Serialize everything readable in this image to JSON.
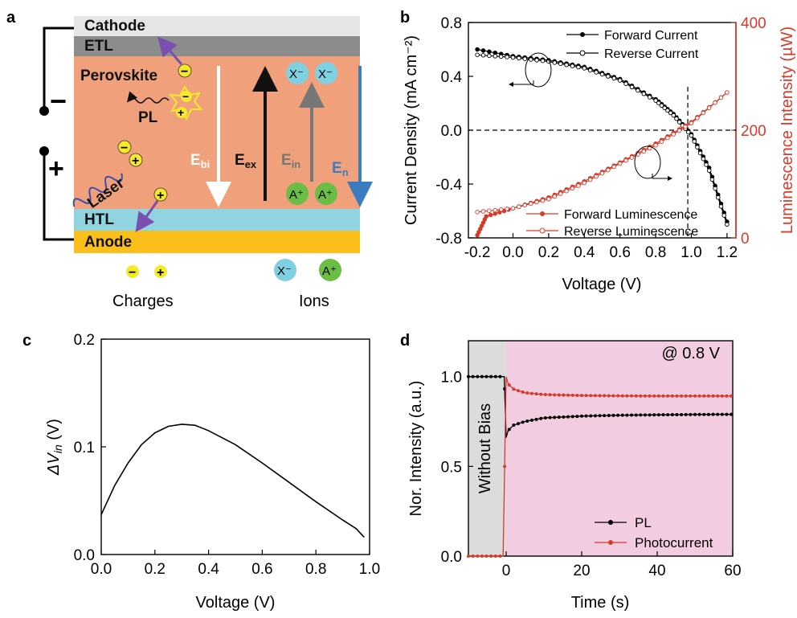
{
  "panels": {
    "a": "a",
    "b": "b",
    "c": "c",
    "d": "d"
  },
  "device": {
    "layers": {
      "cathode": "Cathode",
      "etl": "ETL",
      "perovskite": "Perovskite",
      "htl": "HTL",
      "anode": "Anode"
    },
    "pl": "PL",
    "laser": "Laser",
    "fields": {
      "ebi": "E",
      "ebi_sub": "bi",
      "eex": "E",
      "eex_sub": "ex",
      "ein": "E",
      "ein_sub": "in",
      "en": "E",
      "en_sub": "n"
    },
    "ion_anion": "X⁻",
    "ion_cation": "A⁺",
    "charge_minus": "−",
    "charge_plus": "+",
    "legend_charges": "Charges",
    "legend_ions": "Ions",
    "bias_minus": "−",
    "bias_plus": "+",
    "colors": {
      "cathode": "#e6e6e6",
      "etl": "#8c8c8c",
      "perovskite": "#f0a07a",
      "htl": "#8fd4e0",
      "anode": "#fbbf1c",
      "charge": "#f5ea2a",
      "anion": "#7fd0e0",
      "cation": "#6cbd45",
      "arrow_purple": "#7a4fb0",
      "arrow_blue": "#3a7cc0",
      "arrow_gray": "#777777"
    }
  },
  "chart_data": [
    {
      "panel": "b",
      "type": "line",
      "xlabel": "Voltage (V)",
      "ylabel": "Current Density (mA cm⁻²)",
      "y2label": "Luminescence Intensity (µW)",
      "xlim": [
        -0.25,
        1.25
      ],
      "ylim": [
        -0.8,
        0.8
      ],
      "y2lim": [
        0,
        400
      ],
      "xticks": [
        "-0.2",
        "0.0",
        "0.2",
        "0.4",
        "0.6",
        "0.8",
        "1.0",
        "1.2"
      ],
      "yticks": [
        "-0.8",
        "-0.4",
        "0.0",
        "0.4",
        "0.8"
      ],
      "y2ticks": [
        "0",
        "200",
        "400"
      ],
      "dashed_guides": {
        "y": 0.0,
        "x": 0.98
      },
      "series": [
        {
          "name": "Forward Current",
          "axis": "left",
          "color": "#000000",
          "marker": "filled",
          "x": [
            -0.2,
            0.0,
            0.2,
            0.4,
            0.6,
            0.8,
            0.9,
            1.0,
            1.1,
            1.2
          ],
          "y": [
            0.6,
            0.55,
            0.52,
            0.47,
            0.38,
            0.23,
            0.12,
            -0.03,
            -0.28,
            -0.68
          ]
        },
        {
          "name": "Reverse Current",
          "axis": "left",
          "color": "#000000",
          "marker": "open",
          "x": [
            -0.2,
            0.0,
            0.2,
            0.4,
            0.6,
            0.8,
            0.9,
            1.0,
            1.1,
            1.2
          ],
          "y": [
            0.56,
            0.54,
            0.51,
            0.46,
            0.37,
            0.22,
            0.11,
            -0.04,
            -0.3,
            -0.7
          ]
        },
        {
          "name": "Forward Luminescence",
          "axis": "right",
          "color": "#d83a2a",
          "marker": "filled",
          "x": [
            -0.2,
            -0.15,
            0.0,
            0.2,
            0.4,
            0.6,
            0.8,
            1.0,
            1.2
          ],
          "y": [
            5,
            40,
            55,
            75,
            105,
            140,
            175,
            215,
            270
          ]
        },
        {
          "name": "Reverse Luminescence",
          "axis": "right",
          "color": "#d83a2a",
          "marker": "open",
          "x": [
            -0.2,
            0.0,
            0.2,
            0.4,
            0.6,
            0.8,
            1.0,
            1.2
          ],
          "y": [
            48,
            55,
            72,
            102,
            138,
            172,
            213,
            270
          ]
        }
      ]
    },
    {
      "panel": "c",
      "type": "line",
      "xlabel": "Voltage (V)",
      "ylabel": "ΔV",
      "ylabel_sub": "in",
      "ylabel_unit": " (V)",
      "xlim": [
        0.0,
        1.0
      ],
      "ylim": [
        0.0,
        0.2
      ],
      "xticks": [
        "0.0",
        "0.2",
        "0.4",
        "0.6",
        "0.8",
        "1.0"
      ],
      "yticks": [
        "0.0",
        "0.1",
        "0.2"
      ],
      "series": [
        {
          "color": "#000000",
          "x": [
            0.0,
            0.05,
            0.1,
            0.15,
            0.2,
            0.25,
            0.3,
            0.35,
            0.4,
            0.5,
            0.6,
            0.7,
            0.8,
            0.9,
            0.95,
            0.98
          ],
          "y": [
            0.037,
            0.064,
            0.085,
            0.102,
            0.113,
            0.119,
            0.121,
            0.12,
            0.115,
            0.102,
            0.085,
            0.067,
            0.049,
            0.032,
            0.024,
            0.016
          ]
        }
      ]
    },
    {
      "panel": "d",
      "type": "line",
      "xlabel": "Time (s)",
      "ylabel": "Nor. Intensity (a.u.)",
      "xlim": [
        -10,
        60
      ],
      "ylim": [
        0.0,
        1.2
      ],
      "xticks": [
        "0",
        "20",
        "40",
        "60"
      ],
      "yticks": [
        "0.0",
        "0.5",
        "1.0"
      ],
      "annotation": "@ 0.8 V",
      "region_label": "Without Bias",
      "region_colors": {
        "off": "#dcdcdc",
        "on": "#f2cde2"
      },
      "series": [
        {
          "name": "PL",
          "color": "#000000",
          "x": [
            -10,
            -1,
            -0.5,
            0,
            0.5,
            2,
            5,
            10,
            20,
            30,
            40,
            50,
            60
          ],
          "y": [
            1.0,
            1.0,
            1.0,
            0.66,
            0.7,
            0.73,
            0.75,
            0.77,
            0.78,
            0.785,
            0.787,
            0.789,
            0.79
          ]
        },
        {
          "name": "Photocurrent",
          "color": "#d83a2a",
          "x": [
            -10,
            -1,
            -0.8,
            0,
            0.5,
            2,
            5,
            10,
            20,
            30,
            40,
            50,
            60
          ],
          "y": [
            0.0,
            0.0,
            0.0,
            1.0,
            0.96,
            0.93,
            0.91,
            0.9,
            0.895,
            0.893,
            0.892,
            0.892,
            0.892
          ]
        }
      ]
    }
  ]
}
